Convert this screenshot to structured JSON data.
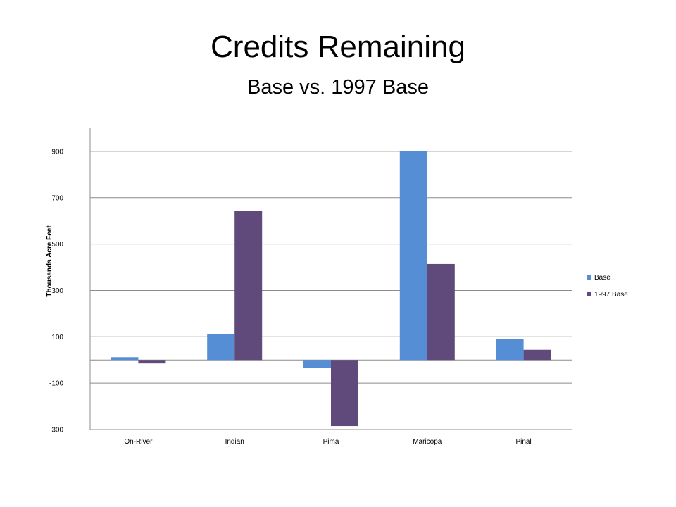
{
  "slide": {
    "title": "Credits Remaining",
    "subtitle": "Base vs. 1997 Base"
  },
  "chart_data": {
    "type": "bar",
    "categories": [
      "On-River",
      "Indian",
      "Pima",
      "Maricopa",
      "Pinal"
    ],
    "series": [
      {
        "name": "Base",
        "color": "#558ED5",
        "values": [
          12,
          112,
          -35,
          900,
          90
        ]
      },
      {
        "name": "1997 Base",
        "color": "#604A7B",
        "values": [
          -15,
          642,
          -285,
          414,
          44
        ]
      }
    ],
    "ylabel": "Thousands Acre Feet",
    "xlabel": "",
    "ylim": [
      -300,
      1000
    ],
    "yticks": [
      -300,
      -100,
      100,
      300,
      500,
      700,
      900
    ],
    "grid": true,
    "legend": "right"
  }
}
